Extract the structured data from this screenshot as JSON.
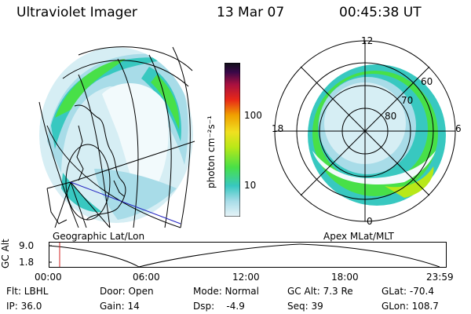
{
  "header": {
    "instrument": "Ultraviolet Imager",
    "date": "13 Mar 07",
    "time": "00:45:38 UT"
  },
  "left_panel": {
    "caption": "Geographic Lat/Lon"
  },
  "colorbar": {
    "label": "photon cm⁻²s⁻¹",
    "ticks": [
      "100",
      "10"
    ],
    "colors": [
      "#e8f4f8",
      "#a8dce8",
      "#38c8c0",
      "#48e048",
      "#b8e818",
      "#f0e020",
      "#f0a000",
      "#e82818",
      "#a81040",
      "#380848",
      "#101018"
    ]
  },
  "right_panel": {
    "caption": "Apex MLat/MLT",
    "mlt_labels": {
      "top": "12",
      "left": "18",
      "right": "6",
      "bottom": "0"
    },
    "lat_labels": [
      "60",
      "70",
      "80"
    ]
  },
  "altitude_strip": {
    "axis_title": "GC Alt",
    "y_ticks": [
      "9.0",
      "1.8"
    ],
    "x_ticks": [
      "00:00",
      "06:00",
      "12:00",
      "18:00",
      "23:59"
    ]
  },
  "info": {
    "flt": "Flt: LBHL",
    "ip": "IP: 36.0",
    "door": "Door: Open",
    "gain": "Gain: 14",
    "mode": "Mode: Normal",
    "dsp": "Dsp:    -4.9",
    "gcalt": "GC Alt: 7.3 Re",
    "seq": "Seq: 39",
    "glat": "GLat: -70.4",
    "glon": "GLon: 108.7"
  }
}
